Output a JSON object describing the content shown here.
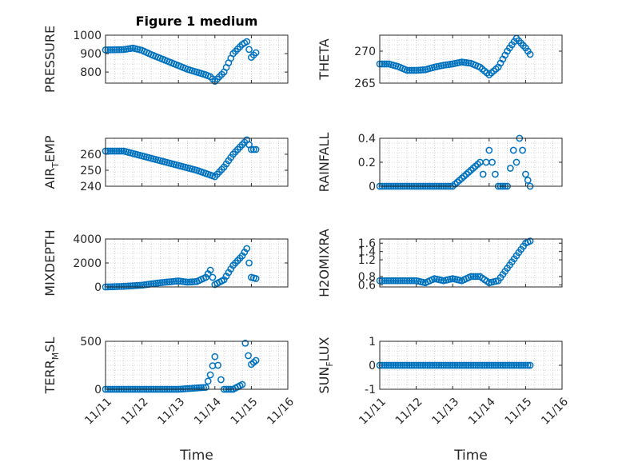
{
  "chart_data": [
    {
      "type": "scatter",
      "title": "Figure 1 medium",
      "ylabel": {
        "main": "PRESSURE"
      },
      "ylim": [
        740,
        1000
      ],
      "yticks": [
        "800",
        "900",
        "1000"
      ],
      "ytick_values": [
        800,
        900,
        1000
      ],
      "xlim": [
        "11/11",
        "11/16"
      ],
      "xticks": [],
      "xlabel": "",
      "grid": true,
      "color": "#0072BD",
      "x": [
        "11/11 00:00",
        "11/11 12:00",
        "11/11 18:00",
        "11/12 00:00",
        "11/12 06:00",
        "11/12 12:00",
        "11/12 18:00",
        "11/13 00:00",
        "11/13 06:00",
        "11/13 12:00",
        "11/13 18:00",
        "11/13 21:00",
        "11/14 00:00",
        "11/14 06:00",
        "11/14 12:00",
        "11/14 18:00",
        "11/14 21:00",
        "11/15 00:00",
        "11/15 03:00"
      ],
      "y": [
        920,
        922,
        930,
        918,
        895,
        875,
        855,
        835,
        815,
        800,
        785,
        775,
        750,
        800,
        900,
        950,
        965,
        880,
        905
      ]
    },
    {
      "type": "scatter",
      "title": "",
      "ylabel": {
        "main": "THETA"
      },
      "ylim": [
        265,
        272.5
      ],
      "yticks": [
        "265",
        "270"
      ],
      "ytick_values": [
        265,
        270
      ],
      "xlim": [
        "11/11",
        "11/16"
      ],
      "xticks": [],
      "xlabel": "",
      "grid": true,
      "color": "#0072BD",
      "x": [
        "11/11 00:00",
        "11/11 06:00",
        "11/11 12:00",
        "11/11 18:00",
        "11/12 00:00",
        "11/12 06:00",
        "11/12 12:00",
        "11/12 18:00",
        "11/13 00:00",
        "11/13 06:00",
        "11/13 12:00",
        "11/13 18:00",
        "11/14 00:00",
        "11/14 06:00",
        "11/14 12:00",
        "11/14 18:00",
        "11/15 00:00",
        "11/15 03:00"
      ],
      "y": [
        268,
        268,
        267.6,
        267,
        267,
        267.1,
        267.5,
        267.8,
        268,
        268.3,
        268.1,
        267.5,
        266.3,
        267.5,
        270,
        272,
        270.5,
        269.5
      ]
    },
    {
      "type": "scatter",
      "title": "",
      "ylabel": {
        "main": "AIR",
        "sub": "T",
        "rest": "EMP"
      },
      "ylim": [
        240,
        270
      ],
      "yticks": [
        "240",
        "250",
        "260"
      ],
      "ytick_values": [
        240,
        250,
        260
      ],
      "xlim": [
        "11/11",
        "11/16"
      ],
      "xticks": [],
      "xlabel": "",
      "grid": true,
      "color": "#0072BD",
      "x": [
        "11/11 00:00",
        "11/11 12:00",
        "11/12 00:00",
        "11/12 12:00",
        "11/13 00:00",
        "11/13 12:00",
        "11/13 18:00",
        "11/14 00:00",
        "11/14 06:00",
        "11/14 12:00",
        "11/14 18:00",
        "11/14 21:00",
        "11/15 00:00",
        "11/15 03:00"
      ],
      "y": [
        262,
        262,
        259,
        256,
        253,
        250,
        248,
        246,
        252,
        260,
        266,
        269,
        263,
        263
      ]
    },
    {
      "type": "scatter",
      "title": "",
      "ylabel": {
        "main": "RAINFALL"
      },
      "ylim": [
        0,
        0.4
      ],
      "yticks": [
        "0",
        "0.2",
        "0.4"
      ],
      "ytick_values": [
        0,
        0.2,
        0.4
      ],
      "xlim": [
        "11/11",
        "11/16"
      ],
      "xticks": [],
      "xlabel": "",
      "grid": true,
      "color": "#0072BD",
      "x": [
        "11/11 00:00",
        "11/12 00:00",
        "11/13 00:00",
        "11/13 18:00",
        "11/13 20:00",
        "11/13 22:00",
        "11/14 00:00",
        "11/14 02:00",
        "11/14 06:00",
        "11/14 12:00",
        "11/14 16:00",
        "11/14 18:00",
        "11/14 20:00",
        "11/14 22:00",
        "11/15 00:00",
        "11/15 03:00"
      ],
      "y": [
        0,
        0,
        0,
        0.2,
        0.1,
        0.2,
        0.3,
        0.2,
        0,
        0,
        0.3,
        0.2,
        0.4,
        0.3,
        0.1,
        0
      ]
    },
    {
      "type": "scatter",
      "title": "",
      "ylabel": {
        "main": "MIXDEPTH"
      },
      "ylim": [
        0,
        4000
      ],
      "yticks": [
        "0",
        "2000",
        "4000"
      ],
      "ytick_values": [
        0,
        2000,
        4000
      ],
      "xlim": [
        "11/11",
        "11/16"
      ],
      "xticks": [],
      "xlabel": "",
      "grid": true,
      "color": "#0072BD",
      "x": [
        "11/11 00:00",
        "11/11 12:00",
        "11/12 00:00",
        "11/12 12:00",
        "11/13 00:00",
        "11/13 06:00",
        "11/13 12:00",
        "11/13 18:00",
        "11/13 21:00",
        "11/14 00:00",
        "11/14 06:00",
        "11/14 12:00",
        "11/14 18:00",
        "11/14 21:00",
        "11/15 00:00",
        "11/15 03:00"
      ],
      "y": [
        0,
        50,
        150,
        350,
        500,
        400,
        450,
        800,
        1400,
        200,
        600,
        1800,
        2600,
        3200,
        800,
        700
      ]
    },
    {
      "type": "scatter",
      "title": "",
      "ylabel": {
        "main": "H2OMIXRA"
      },
      "ylim": [
        0.55,
        1.7
      ],
      "yticks": [
        "0.6",
        "0.8",
        "1.2",
        "1.4",
        "1.6"
      ],
      "ytick_values": [
        0.6,
        0.8,
        1.2,
        1.4,
        1.6
      ],
      "xlim": [
        "11/11",
        "11/16"
      ],
      "xticks": [],
      "xlabel": "",
      "grid": true,
      "color": "#0072BD",
      "x": [
        "11/11 00:00",
        "11/11 12:00",
        "11/12 00:00",
        "11/12 06:00",
        "11/12 12:00",
        "11/12 18:00",
        "11/13 00:00",
        "11/13 06:00",
        "11/13 12:00",
        "11/13 18:00",
        "11/14 00:00",
        "11/14 06:00",
        "11/14 12:00",
        "11/14 18:00",
        "11/15 00:00",
        "11/15 03:00"
      ],
      "y": [
        0.7,
        0.7,
        0.7,
        0.65,
        0.75,
        0.7,
        0.75,
        0.7,
        0.8,
        0.8,
        0.65,
        0.7,
        1.0,
        1.3,
        1.6,
        1.65
      ]
    },
    {
      "type": "scatter",
      "title": "",
      "ylabel": {
        "main": "TERR",
        "sub": "M",
        "rest": "SL"
      },
      "ylim": [
        0,
        500
      ],
      "yticks": [
        "0",
        "500"
      ],
      "ytick_values": [
        0,
        500
      ],
      "xlim": [
        "11/11",
        "11/16"
      ],
      "xticks": [
        "11/11",
        "11/12",
        "11/13",
        "11/14",
        "11/15",
        "11/16"
      ],
      "xlabel": "Time",
      "grid": true,
      "color": "#0072BD",
      "x": [
        "11/11 00:00",
        "11/12 00:00",
        "11/13 00:00",
        "11/13 18:00",
        "11/13 21:00",
        "11/14 00:00",
        "11/14 02:00",
        "11/14 04:00",
        "11/14 06:00",
        "11/14 12:00",
        "11/14 18:00",
        "11/14 20:00",
        "11/14 22:00",
        "11/15 00:00",
        "11/15 03:00"
      ],
      "y": [
        0,
        0,
        0,
        20,
        150,
        340,
        250,
        100,
        0,
        0,
        50,
        480,
        350,
        260,
        300
      ]
    },
    {
      "type": "scatter",
      "title": "",
      "ylabel": {
        "main": "SUN",
        "sub": "F",
        "rest": "LUX"
      },
      "ylim": [
        -1,
        1
      ],
      "yticks": [
        "-1",
        "0",
        "1"
      ],
      "ytick_values": [
        -1,
        0,
        1
      ],
      "xlim": [
        "11/11",
        "11/16"
      ],
      "xticks": [
        "11/11",
        "11/12",
        "11/13",
        "11/14",
        "11/15",
        "11/16"
      ],
      "xlabel": "Time",
      "grid": true,
      "color": "#0072BD",
      "x": [
        "11/11 00:00",
        "11/12 00:00",
        "11/13 00:00",
        "11/14 00:00",
        "11/15 00:00",
        "11/15 03:00"
      ],
      "y": [
        0,
        0,
        0,
        0,
        0,
        0
      ]
    }
  ]
}
